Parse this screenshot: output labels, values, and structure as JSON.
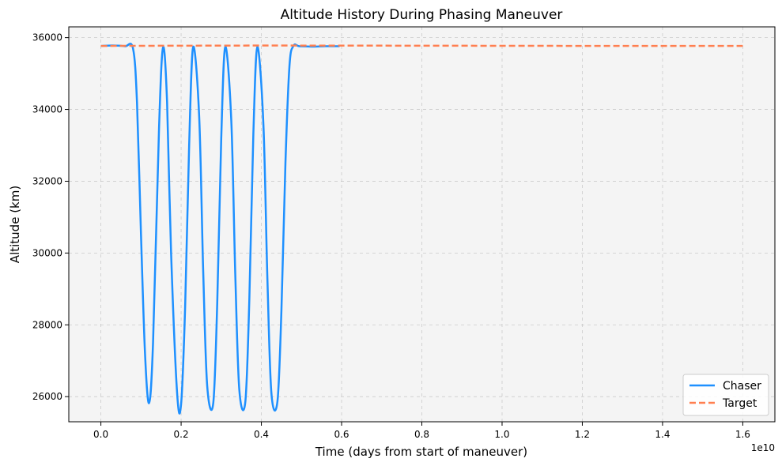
{
  "chart_data": {
    "type": "line",
    "title": "Altitude History During Phasing Maneuver",
    "xlabel": "Time (days from start of maneuver)",
    "ylabel": "Altitude (km)",
    "x_offset_label": "1e10",
    "xlim": [
      -0.08,
      1.68
    ],
    "ylim": [
      25300,
      36300
    ],
    "x_ticks": [
      0.0,
      0.2,
      0.4,
      0.6,
      0.8,
      1.0,
      1.2,
      1.4,
      1.6
    ],
    "x_tick_labels": [
      "0.0",
      "0.2",
      "0.4",
      "0.6",
      "0.8",
      "1.0",
      "1.2",
      "1.4",
      "1.6"
    ],
    "y_ticks": [
      26000,
      28000,
      30000,
      32000,
      34000,
      36000
    ],
    "y_tick_labels": [
      "26000",
      "28000",
      "30000",
      "32000",
      "34000",
      "36000"
    ],
    "grid": true,
    "legend_position": "bottom-right",
    "plot_background": "#f4f4f4",
    "series": [
      {
        "name": "Chaser",
        "color": "#1e90ff",
        "style": "solid",
        "x": [
          0.0,
          0.03,
          0.06,
          0.08,
          0.09,
          0.1,
          0.11,
          0.12,
          0.13,
          0.145,
          0.155,
          0.165,
          0.175,
          0.19,
          0.2,
          0.21,
          0.22,
          0.23,
          0.245,
          0.255,
          0.265,
          0.28,
          0.29,
          0.3,
          0.31,
          0.325,
          0.335,
          0.345,
          0.36,
          0.37,
          0.38,
          0.39,
          0.405,
          0.415,
          0.425,
          0.44,
          0.45,
          0.46,
          0.47,
          0.48,
          0.495,
          0.53,
          0.56,
          0.595
        ],
        "y": [
          35770,
          35780,
          35760,
          35700,
          34200,
          30500,
          27200,
          25820,
          27500,
          33500,
          35730,
          34200,
          30000,
          26100,
          25800,
          28500,
          33000,
          35740,
          33800,
          29500,
          26300,
          25810,
          28600,
          33200,
          35740,
          33700,
          29400,
          26200,
          25850,
          28700,
          33300,
          35740,
          33600,
          29300,
          26100,
          25860,
          28400,
          32500,
          35200,
          35770,
          35760,
          35750,
          35760,
          35760
        ]
      },
      {
        "name": "Target",
        "color": "#ff7f50",
        "style": "dashed",
        "x": [
          0.0,
          0.4,
          0.8,
          1.2,
          1.6
        ],
        "y": [
          35770,
          35780,
          35775,
          35770,
          35770
        ]
      }
    ]
  }
}
